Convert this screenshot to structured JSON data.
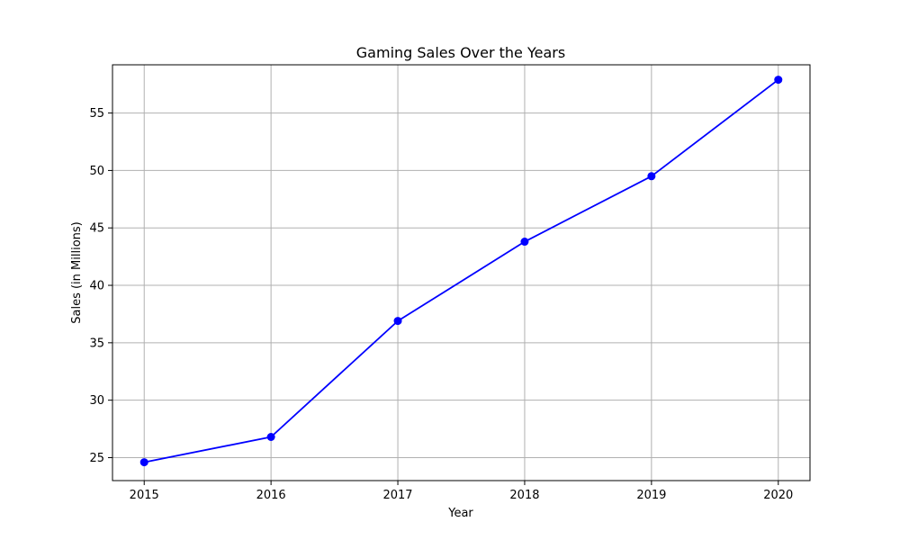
{
  "chart_data": {
    "type": "line",
    "title": "Gaming Sales Over the Years",
    "xlabel": "Year",
    "ylabel": "Sales (in Millions)",
    "x": [
      "2015",
      "2016",
      "2017",
      "2018",
      "2019",
      "2020"
    ],
    "series": [
      {
        "values": [
          24.6,
          26.8,
          36.9,
          43.8,
          49.5,
          57.9
        ],
        "color": "#0000ff",
        "marker": "circle"
      }
    ],
    "xlim": [
      2014.75,
      2020.25
    ],
    "ylim": [
      23.0,
      59.2
    ],
    "yticks": [
      "25",
      "30",
      "35",
      "40",
      "45",
      "50",
      "55"
    ],
    "grid": true
  }
}
